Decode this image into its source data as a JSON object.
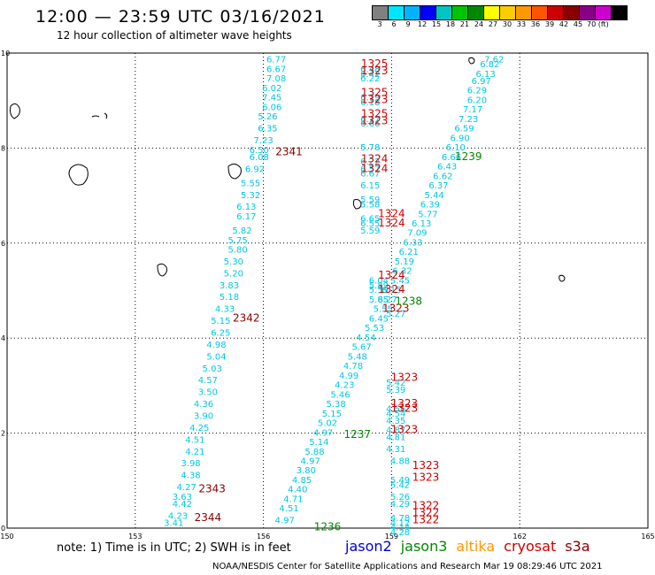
{
  "title": "12:00 — 23:59 UTC 03/16/2021",
  "subtitle": "12 hour collection of altimeter wave heights",
  "color_scale": {
    "labels": [
      "3",
      "6",
      "9",
      "12",
      "15",
      "18",
      "21",
      "24",
      "27",
      "30",
      "33",
      "36",
      "39",
      "42",
      "45",
      "70 (ft)"
    ],
    "colors": [
      "#808080",
      "#00e5ff",
      "#00b4ff",
      "#0000ff",
      "#00c4c4",
      "#00c400",
      "#008800",
      "#ffff00",
      "#ffcc00",
      "#ff9900",
      "#ff5500",
      "#cc0000",
      "#880000",
      "#880088",
      "#cc00cc",
      "#000000"
    ]
  },
  "axes": {
    "x_ticks": [
      "150",
      "153",
      "156",
      "159",
      "162",
      "165"
    ],
    "y_ticks": [
      "0",
      "2",
      "4",
      "6",
      "8",
      "10"
    ]
  },
  "footnote": "note:  1) Time is in UTC; 2) SWH is in feet",
  "credit": "NOAA/NESDIS Center for Satellite Applications and Research     Mar 19 08:29:46 UTC 2021",
  "legend": [
    {
      "label": "jason2",
      "color": "#0000cc"
    },
    {
      "label": "jason3",
      "color": "#008800"
    },
    {
      "label": "altika",
      "color": "#ff9900"
    },
    {
      "label": "cryosat",
      "color": "#cc0000"
    },
    {
      "label": "s3a",
      "color": "#880000"
    }
  ],
  "chart_data": {
    "type": "scatter",
    "xlim": [
      150,
      165
    ],
    "ylim": [
      0,
      10
    ],
    "track_values_color": "#00c8e0",
    "tracks": [
      {
        "name": "track-2341-2344",
        "points": [
          {
            "lon": 156.3,
            "lat": 9.8,
            "v": "6.77"
          },
          {
            "lon": 156.3,
            "lat": 9.6,
            "v": "6.67"
          },
          {
            "lon": 156.3,
            "lat": 9.4,
            "v": "7.08"
          },
          {
            "lon": 156.2,
            "lat": 9.2,
            "v": "6.02"
          },
          {
            "lon": 156.2,
            "lat": 9.0,
            "v": "7.45"
          },
          {
            "lon": 156.2,
            "lat": 8.8,
            "v": "6.06"
          },
          {
            "lon": 156.1,
            "lat": 8.6,
            "v": "5.26"
          },
          {
            "lon": 156.1,
            "lat": 8.35,
            "v": "6.35"
          },
          {
            "lon": 156.0,
            "lat": 8.1,
            "v": "7.23"
          },
          {
            "lon": 155.9,
            "lat": 7.9,
            "v": "6.50"
          },
          {
            "lon": 155.9,
            "lat": 7.75,
            "v": "6.08"
          },
          {
            "lon": 155.8,
            "lat": 7.5,
            "v": "6.92"
          },
          {
            "lon": 155.7,
            "lat": 7.2,
            "v": "5.55"
          },
          {
            "lon": 155.7,
            "lat": 6.95,
            "v": "5.32"
          },
          {
            "lon": 155.6,
            "lat": 6.7,
            "v": "6.13"
          },
          {
            "lon": 155.6,
            "lat": 6.5,
            "v": "6.17"
          },
          {
            "lon": 155.5,
            "lat": 6.2,
            "v": "5.82"
          },
          {
            "lon": 155.4,
            "lat": 6.0,
            "v": "5.75"
          },
          {
            "lon": 155.4,
            "lat": 5.8,
            "v": "5.80"
          },
          {
            "lon": 155.3,
            "lat": 5.55,
            "v": "5.30"
          },
          {
            "lon": 155.3,
            "lat": 5.3,
            "v": "5.20"
          },
          {
            "lon": 155.2,
            "lat": 5.05,
            "v": "3.83"
          },
          {
            "lon": 155.2,
            "lat": 4.8,
            "v": "5.18"
          },
          {
            "lon": 155.1,
            "lat": 4.55,
            "v": "4.33"
          },
          {
            "lon": 155.0,
            "lat": 4.3,
            "v": "5.15"
          },
          {
            "lon": 155.0,
            "lat": 4.05,
            "v": "6.25"
          },
          {
            "lon": 154.9,
            "lat": 3.8,
            "v": "4.98"
          },
          {
            "lon": 154.9,
            "lat": 3.55,
            "v": "5.04"
          },
          {
            "lon": 154.8,
            "lat": 3.3,
            "v": "5.03"
          },
          {
            "lon": 154.7,
            "lat": 3.05,
            "v": "4.57"
          },
          {
            "lon": 154.7,
            "lat": 2.8,
            "v": "3.50"
          },
          {
            "lon": 154.6,
            "lat": 2.55,
            "v": "4.36"
          },
          {
            "lon": 154.6,
            "lat": 2.3,
            "v": "3.90"
          },
          {
            "lon": 154.5,
            "lat": 2.05,
            "v": "4.25"
          },
          {
            "lon": 154.4,
            "lat": 1.8,
            "v": "4.51"
          },
          {
            "lon": 154.4,
            "lat": 1.55,
            "v": "4.21"
          },
          {
            "lon": 154.3,
            "lat": 1.3,
            "v": "3.98"
          },
          {
            "lon": 154.3,
            "lat": 1.05,
            "v": "4.38"
          },
          {
            "lon": 154.2,
            "lat": 0.8,
            "v": "4.27"
          },
          {
            "lon": 154.1,
            "lat": 0.6,
            "v": "3.63"
          },
          {
            "lon": 154.1,
            "lat": 0.45,
            "v": "4.42"
          },
          {
            "lon": 154.0,
            "lat": 0.2,
            "v": "4.23"
          },
          {
            "lon": 153.9,
            "lat": 0.05,
            "v": "3.41"
          }
        ]
      },
      {
        "name": "track-1236-1239",
        "points": [
          {
            "lon": 161.4,
            "lat": 9.8,
            "v": "7.62"
          },
          {
            "lon": 161.3,
            "lat": 9.7,
            "v": "6.82"
          },
          {
            "lon": 161.2,
            "lat": 9.5,
            "v": "6.13"
          },
          {
            "lon": 161.1,
            "lat": 9.35,
            "v": "6.97"
          },
          {
            "lon": 161.0,
            "lat": 9.15,
            "v": "6.29"
          },
          {
            "lon": 161.0,
            "lat": 8.95,
            "v": "6.20"
          },
          {
            "lon": 160.9,
            "lat": 8.75,
            "v": "7.17"
          },
          {
            "lon": 160.8,
            "lat": 8.55,
            "v": "7.23"
          },
          {
            "lon": 160.7,
            "lat": 8.35,
            "v": "6.59"
          },
          {
            "lon": 160.6,
            "lat": 8.15,
            "v": "6.90"
          },
          {
            "lon": 160.5,
            "lat": 7.95,
            "v": "6.10"
          },
          {
            "lon": 160.4,
            "lat": 7.75,
            "v": "6.66"
          },
          {
            "lon": 160.3,
            "lat": 7.55,
            "v": "6.43"
          },
          {
            "lon": 160.2,
            "lat": 7.35,
            "v": "6.62"
          },
          {
            "lon": 160.1,
            "lat": 7.15,
            "v": "6.37"
          },
          {
            "lon": 160.0,
            "lat": 6.95,
            "v": "5.44"
          },
          {
            "lon": 159.9,
            "lat": 6.75,
            "v": "6.39"
          },
          {
            "lon": 159.85,
            "lat": 6.55,
            "v": "5.77"
          },
          {
            "lon": 159.7,
            "lat": 6.35,
            "v": "6.13"
          },
          {
            "lon": 159.6,
            "lat": 6.15,
            "v": "7.09"
          },
          {
            "lon": 159.5,
            "lat": 5.95,
            "v": "6.33"
          },
          {
            "lon": 159.4,
            "lat": 5.75,
            "v": "6.21"
          },
          {
            "lon": 159.3,
            "lat": 5.55,
            "v": "5.19"
          },
          {
            "lon": 159.25,
            "lat": 5.35,
            "v": "6.32"
          },
          {
            "lon": 159.2,
            "lat": 5.15,
            "v": "5.45"
          },
          {
            "lon": 159.0,
            "lat": 4.95,
            "v": "6.15"
          },
          {
            "lon": 158.9,
            "lat": 4.75,
            "v": "6.27"
          },
          {
            "lon": 158.8,
            "lat": 4.55,
            "v": "5.55"
          },
          {
            "lon": 158.7,
            "lat": 4.35,
            "v": "6.45"
          },
          {
            "lon": 158.6,
            "lat": 4.15,
            "v": "5.53"
          },
          {
            "lon": 158.4,
            "lat": 3.95,
            "v": "4.54"
          },
          {
            "lon": 158.3,
            "lat": 3.75,
            "v": "5.67"
          },
          {
            "lon": 158.2,
            "lat": 3.55,
            "v": "5.48"
          },
          {
            "lon": 158.1,
            "lat": 3.35,
            "v": "4.78"
          },
          {
            "lon": 158.0,
            "lat": 3.15,
            "v": "4.99"
          },
          {
            "lon": 157.9,
            "lat": 2.95,
            "v": "4.23"
          },
          {
            "lon": 157.8,
            "lat": 2.75,
            "v": "5.46"
          },
          {
            "lon": 157.7,
            "lat": 2.55,
            "v": "5.38"
          },
          {
            "lon": 157.6,
            "lat": 2.35,
            "v": "5.15"
          },
          {
            "lon": 157.5,
            "lat": 2.15,
            "v": "5.02"
          },
          {
            "lon": 157.4,
            "lat": 1.95,
            "v": "4.97"
          },
          {
            "lon": 157.3,
            "lat": 1.75,
            "v": "5.14"
          },
          {
            "lon": 157.2,
            "lat": 1.55,
            "v": "5.88"
          },
          {
            "lon": 157.1,
            "lat": 1.35,
            "v": "4.97"
          },
          {
            "lon": 157.0,
            "lat": 1.15,
            "v": "3.80"
          },
          {
            "lon": 156.9,
            "lat": 0.95,
            "v": "4.85"
          },
          {
            "lon": 156.8,
            "lat": 0.75,
            "v": "4.40"
          },
          {
            "lon": 156.7,
            "lat": 0.55,
            "v": "4.71"
          },
          {
            "lon": 156.6,
            "lat": 0.35,
            "v": "4.51"
          },
          {
            "lon": 156.5,
            "lat": 0.1,
            "v": "4.97"
          }
        ]
      },
      {
        "name": "track-1322-1325",
        "points": [
          {
            "lon": 158.5,
            "lat": 9.6,
            "v": "6.48"
          },
          {
            "lon": 158.5,
            "lat": 9.5,
            "v": "6.42"
          },
          {
            "lon": 158.5,
            "lat": 9.4,
            "v": "6.22"
          },
          {
            "lon": 158.5,
            "lat": 9.0,
            "v": "6.19"
          },
          {
            "lon": 158.5,
            "lat": 8.9,
            "v": "6.18"
          },
          {
            "lon": 158.5,
            "lat": 8.55,
            "v": "6.17"
          },
          {
            "lon": 158.5,
            "lat": 8.45,
            "v": "6.66"
          },
          {
            "lon": 158.5,
            "lat": 7.95,
            "v": "5.78"
          },
          {
            "lon": 158.5,
            "lat": 7.65,
            "v": "6.22"
          },
          {
            "lon": 158.5,
            "lat": 7.5,
            "v": "6.57"
          },
          {
            "lon": 158.5,
            "lat": 7.4,
            "v": "6.67"
          },
          {
            "lon": 158.5,
            "lat": 7.15,
            "v": "6.15"
          },
          {
            "lon": 158.5,
            "lat": 6.85,
            "v": "5.59"
          },
          {
            "lon": 158.5,
            "lat": 6.75,
            "v": "5.58"
          },
          {
            "lon": 158.5,
            "lat": 6.45,
            "v": "6.65"
          },
          {
            "lon": 158.5,
            "lat": 6.35,
            "v": "6.55"
          },
          {
            "lon": 158.5,
            "lat": 6.2,
            "v": "5.59"
          },
          {
            "lon": 158.7,
            "lat": 5.15,
            "v": "6.04"
          },
          {
            "lon": 158.7,
            "lat": 5.05,
            "v": "5.89"
          },
          {
            "lon": 158.7,
            "lat": 4.95,
            "v": "5.59"
          },
          {
            "lon": 158.7,
            "lat": 4.75,
            "v": "5.85"
          },
          {
            "lon": 159.1,
            "lat": 4.45,
            "v": "5.27"
          },
          {
            "lon": 159.1,
            "lat": 3.0,
            "v": "5.42"
          },
          {
            "lon": 159.1,
            "lat": 2.85,
            "v": "5.39"
          },
          {
            "lon": 159.1,
            "lat": 2.45,
            "v": "4.56"
          },
          {
            "lon": 159.1,
            "lat": 2.35,
            "v": "4.54"
          },
          {
            "lon": 159.1,
            "lat": 2.2,
            "v": "4.35"
          },
          {
            "lon": 159.1,
            "lat": 2.0,
            "v": "4.87"
          },
          {
            "lon": 159.1,
            "lat": 1.85,
            "v": "4.81"
          },
          {
            "lon": 159.1,
            "lat": 1.6,
            "v": "4.31"
          },
          {
            "lon": 159.2,
            "lat": 1.35,
            "v": "4.88"
          },
          {
            "lon": 159.2,
            "lat": 0.95,
            "v": "5.49"
          },
          {
            "lon": 159.2,
            "lat": 0.85,
            "v": "5.42"
          },
          {
            "lon": 159.2,
            "lat": 0.6,
            "v": "5.26"
          },
          {
            "lon": 159.2,
            "lat": 0.45,
            "v": "4.29"
          },
          {
            "lon": 159.2,
            "lat": 0.15,
            "v": "4.78"
          },
          {
            "lon": 159.2,
            "lat": 0.05,
            "v": "4.12"
          },
          {
            "lon": 159.2,
            "lat": -0.05,
            "v": "4.14"
          },
          {
            "lon": 159.2,
            "lat": -0.15,
            "v": "4.28"
          }
        ]
      }
    ],
    "time_labels": [
      {
        "lon": 158.6,
        "lat": 9.7,
        "t": "1325",
        "color": "#cc0000"
      },
      {
        "lon": 158.6,
        "lat": 9.55,
        "t": "1323",
        "color": "#cc0000"
      },
      {
        "lon": 158.6,
        "lat": 9.1,
        "t": "1325",
        "color": "#cc0000"
      },
      {
        "lon": 158.6,
        "lat": 8.95,
        "t": "1323",
        "color": "#cc0000"
      },
      {
        "lon": 158.6,
        "lat": 8.65,
        "t": "1325",
        "color": "#cc0000"
      },
      {
        "lon": 158.6,
        "lat": 8.5,
        "t": "1323",
        "color": "#cc0000"
      },
      {
        "lon": 158.6,
        "lat": 7.7,
        "t": "1324",
        "color": "#cc0000"
      },
      {
        "lon": 158.6,
        "lat": 7.5,
        "t": "1324",
        "color": "#cc0000"
      },
      {
        "lon": 159.0,
        "lat": 6.55,
        "t": "1324",
        "color": "#cc0000"
      },
      {
        "lon": 159.0,
        "lat": 6.35,
        "t": "1324",
        "color": "#cc0000"
      },
      {
        "lon": 159.0,
        "lat": 5.25,
        "t": "1324",
        "color": "#cc0000"
      },
      {
        "lon": 159.0,
        "lat": 4.95,
        "t": "1324",
        "color": "#cc0000"
      },
      {
        "lon": 159.1,
        "lat": 4.55,
        "t": "1323",
        "color": "#cc0000"
      },
      {
        "lon": 159.3,
        "lat": 3.1,
        "t": "1323",
        "color": "#cc0000"
      },
      {
        "lon": 159.3,
        "lat": 2.55,
        "t": "1323",
        "color": "#cc0000"
      },
      {
        "lon": 159.3,
        "lat": 2.45,
        "t": "1323",
        "color": "#cc0000"
      },
      {
        "lon": 159.3,
        "lat": 2.0,
        "t": "1323",
        "color": "#cc0000"
      },
      {
        "lon": 159.8,
        "lat": 1.25,
        "t": "1323",
        "color": "#cc0000"
      },
      {
        "lon": 159.8,
        "lat": 1.0,
        "t": "1323",
        "color": "#cc0000"
      },
      {
        "lon": 159.8,
        "lat": 0.4,
        "t": "1322",
        "color": "#cc0000"
      },
      {
        "lon": 159.8,
        "lat": 0.25,
        "t": "1322",
        "color": "#cc0000"
      },
      {
        "lon": 159.8,
        "lat": 0.1,
        "t": "1322",
        "color": "#cc0000"
      },
      {
        "lon": 156.6,
        "lat": 7.85,
        "t": "2341",
        "color": "#880000"
      },
      {
        "lon": 155.6,
        "lat": 4.35,
        "t": "2342",
        "color": "#880000"
      },
      {
        "lon": 154.8,
        "lat": 0.75,
        "t": "2343",
        "color": "#880000"
      },
      {
        "lon": 154.7,
        "lat": 0.15,
        "t": "2344",
        "color": "#880000"
      },
      {
        "lon": 160.8,
        "lat": 7.75,
        "t": "1239",
        "color": "#008800"
      },
      {
        "lon": 159.4,
        "lat": 4.7,
        "t": "1238",
        "color": "#008800"
      },
      {
        "lon": 158.2,
        "lat": 1.9,
        "t": "1237",
        "color": "#008800"
      },
      {
        "lon": 157.5,
        "lat": -0.05,
        "t": "1236",
        "color": "#008800"
      }
    ]
  }
}
